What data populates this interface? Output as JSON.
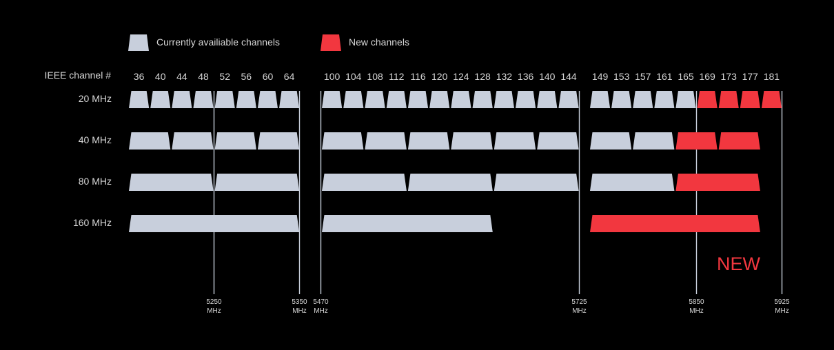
{
  "legend": {
    "current_label": "Currently availiable channels",
    "new_label": "New channels"
  },
  "colors": {
    "current": "#c8cfdc",
    "new": "#f2373f",
    "text": "#d7d7d7",
    "divider": "#c8cfdc",
    "background": "#000000"
  },
  "row_labels": {
    "header": "IEEE channel #",
    "rows": [
      "20 MHz",
      "40 MHz",
      "80 MHz",
      "160 MHz"
    ]
  },
  "channels": [
    {
      "num": "36"
    },
    {
      "num": "40"
    },
    {
      "num": "44"
    },
    {
      "num": "48"
    },
    {
      "num": "52"
    },
    {
      "num": "56"
    },
    {
      "num": "60"
    },
    {
      "num": "64"
    },
    {
      "num": "100"
    },
    {
      "num": "104"
    },
    {
      "num": "108"
    },
    {
      "num": "112"
    },
    {
      "num": "116"
    },
    {
      "num": "120"
    },
    {
      "num": "124"
    },
    {
      "num": "128"
    },
    {
      "num": "132"
    },
    {
      "num": "136"
    },
    {
      "num": "140"
    },
    {
      "num": "144"
    },
    {
      "num": "149"
    },
    {
      "num": "153"
    },
    {
      "num": "157"
    },
    {
      "num": "161"
    },
    {
      "num": "165"
    },
    {
      "num": "169"
    },
    {
      "num": "173"
    },
    {
      "num": "177"
    },
    {
      "num": "181"
    }
  ],
  "blocks": {
    "20 MHz": [
      {
        "from": "36",
        "to": "36",
        "new": false
      },
      {
        "from": "40",
        "to": "40",
        "new": false
      },
      {
        "from": "44",
        "to": "44",
        "new": false
      },
      {
        "from": "48",
        "to": "48",
        "new": false
      },
      {
        "from": "52",
        "to": "52",
        "new": false
      },
      {
        "from": "56",
        "to": "56",
        "new": false
      },
      {
        "from": "60",
        "to": "60",
        "new": false
      },
      {
        "from": "64",
        "to": "64",
        "new": false
      },
      {
        "from": "100",
        "to": "100",
        "new": false
      },
      {
        "from": "104",
        "to": "104",
        "new": false
      },
      {
        "from": "108",
        "to": "108",
        "new": false
      },
      {
        "from": "112",
        "to": "112",
        "new": false
      },
      {
        "from": "116",
        "to": "116",
        "new": false
      },
      {
        "from": "120",
        "to": "120",
        "new": false
      },
      {
        "from": "124",
        "to": "124",
        "new": false
      },
      {
        "from": "128",
        "to": "128",
        "new": false
      },
      {
        "from": "132",
        "to": "132",
        "new": false
      },
      {
        "from": "136",
        "to": "136",
        "new": false
      },
      {
        "from": "140",
        "to": "140",
        "new": false
      },
      {
        "from": "144",
        "to": "144",
        "new": false
      },
      {
        "from": "149",
        "to": "149",
        "new": false
      },
      {
        "from": "153",
        "to": "153",
        "new": false
      },
      {
        "from": "157",
        "to": "157",
        "new": false
      },
      {
        "from": "161",
        "to": "161",
        "new": false
      },
      {
        "from": "165",
        "to": "165",
        "new": false
      },
      {
        "from": "169",
        "to": "169",
        "new": true
      },
      {
        "from": "173",
        "to": "173",
        "new": true
      },
      {
        "from": "177",
        "to": "177",
        "new": true
      },
      {
        "from": "181",
        "to": "181",
        "new": true
      }
    ],
    "40 MHz": [
      {
        "from": "36",
        "to": "40",
        "new": false
      },
      {
        "from": "44",
        "to": "48",
        "new": false
      },
      {
        "from": "52",
        "to": "56",
        "new": false
      },
      {
        "from": "60",
        "to": "64",
        "new": false
      },
      {
        "from": "100",
        "to": "104",
        "new": false
      },
      {
        "from": "108",
        "to": "112",
        "new": false
      },
      {
        "from": "116",
        "to": "120",
        "new": false
      },
      {
        "from": "124",
        "to": "128",
        "new": false
      },
      {
        "from": "132",
        "to": "136",
        "new": false
      },
      {
        "from": "140",
        "to": "144",
        "new": false
      },
      {
        "from": "149",
        "to": "153",
        "new": false
      },
      {
        "from": "157",
        "to": "161",
        "new": false
      },
      {
        "from": "165",
        "to": "169",
        "new": true
      },
      {
        "from": "173",
        "to": "177",
        "new": true
      }
    ],
    "80 MHz": [
      {
        "from": "36",
        "to": "48",
        "new": false
      },
      {
        "from": "52",
        "to": "64",
        "new": false
      },
      {
        "from": "100",
        "to": "112",
        "new": false
      },
      {
        "from": "116",
        "to": "128",
        "new": false
      },
      {
        "from": "132",
        "to": "144",
        "new": false
      },
      {
        "from": "149",
        "to": "161",
        "new": false
      },
      {
        "from": "165",
        "to": "177",
        "new": true
      }
    ],
    "160 MHz": [
      {
        "from": "36",
        "to": "64",
        "new": false
      },
      {
        "from": "100",
        "to": "128",
        "new": false
      },
      {
        "from": "149",
        "to": "177",
        "new": true
      }
    ]
  },
  "frequency_markers": [
    {
      "freq": "5250",
      "unit": "MHz",
      "boundary_after": "48"
    },
    {
      "freq": "5350",
      "unit": "MHz",
      "boundary_after": "64"
    },
    {
      "freq": "5470",
      "unit": "MHz",
      "boundary_before": "100"
    },
    {
      "freq": "5725",
      "unit": "MHz",
      "boundary_after": "144"
    },
    {
      "freq": "5850",
      "unit": "MHz",
      "boundary_after": "165"
    },
    {
      "freq": "5925",
      "unit": "MHz",
      "boundary_after": "181"
    }
  ],
  "new_badge": "NEW"
}
